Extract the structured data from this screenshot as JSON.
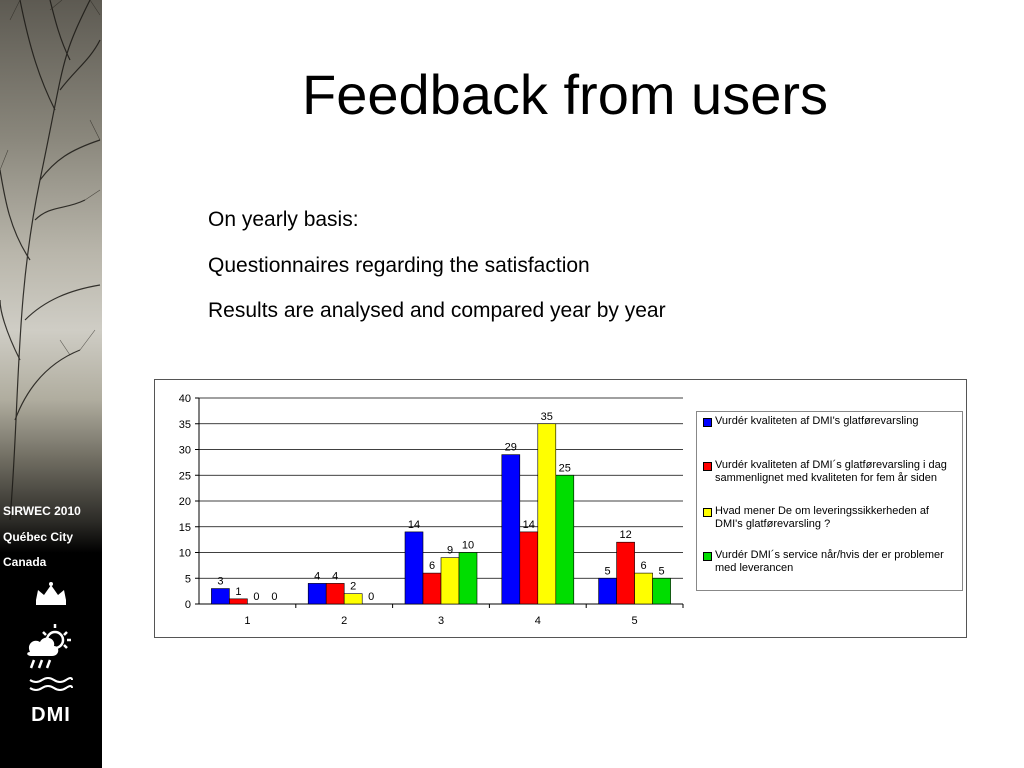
{
  "title": "Feedback from users",
  "bullets": [
    "On yearly basis:",
    "Questionnaires regarding the satisfaction",
    "Results are analysed and compared year by year"
  ],
  "sidebar": {
    "line1": "SIRWEC 2010",
    "line2": "Québec City",
    "line3": "Canada",
    "logo_text": "DMI"
  },
  "chart_data": {
    "type": "bar",
    "categories": [
      "1",
      "2",
      "3",
      "4",
      "5"
    ],
    "ylim": [
      0,
      40
    ],
    "yticks": [
      0,
      5,
      10,
      15,
      20,
      25,
      30,
      35,
      40
    ],
    "grid": true,
    "legend_position": "right",
    "series": [
      {
        "name": "Vurdér kvaliteten af DMI's glatførevarsling",
        "color": "#0000ff",
        "values": [
          3,
          4,
          14,
          29,
          5
        ]
      },
      {
        "name": "Vurdér kvaliteten af DMI´s glatførevarsling i dag sammenlignet med kvaliteten for fem år siden",
        "color": "#ff0000",
        "values": [
          1,
          4,
          6,
          14,
          12
        ]
      },
      {
        "name": "Hvad mener De om leveringssikkerheden af DMI's glatførevarsling ?",
        "color": "#ffff00",
        "values": [
          0,
          2,
          9,
          35,
          6
        ]
      },
      {
        "name": "Vurdér DMI´s service når/hvis der er problemer med leverancen",
        "color": "#00dd00",
        "values": [
          0,
          0,
          10,
          25,
          5
        ]
      }
    ]
  }
}
